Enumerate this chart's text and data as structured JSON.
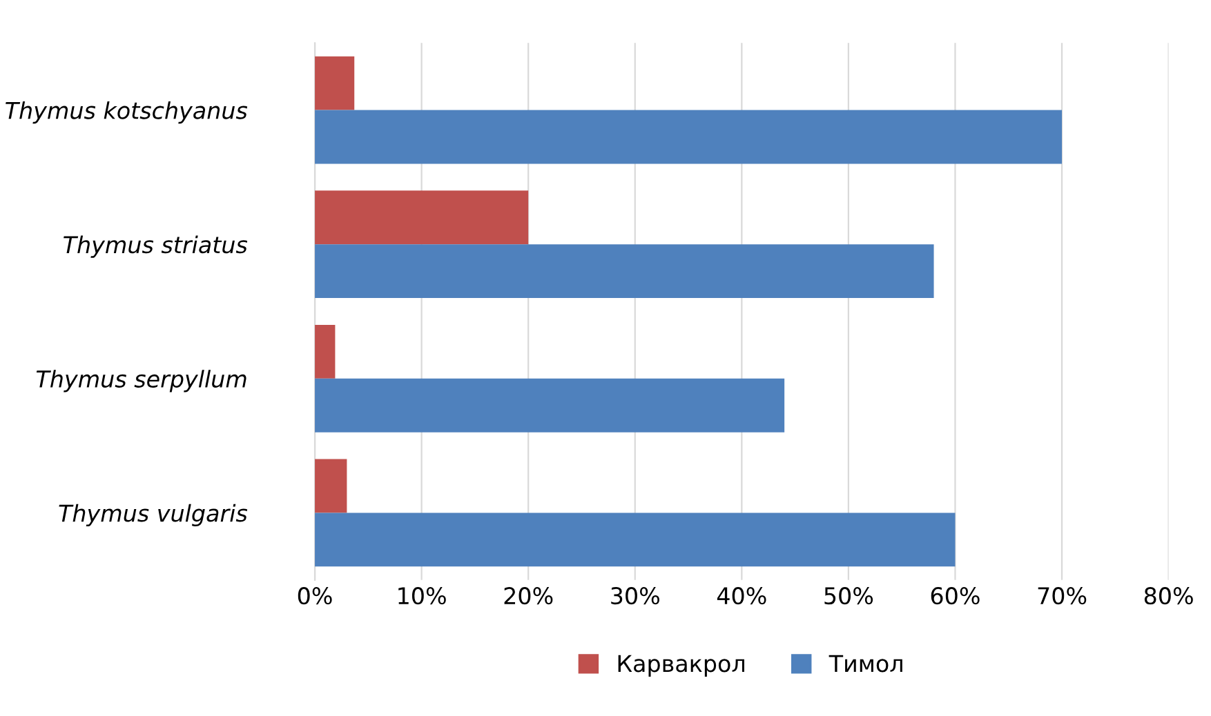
{
  "chart_data": {
    "type": "bar",
    "orientation": "horizontal",
    "categories": [
      "Thymus kotschyanus",
      "Thymus striatus",
      "Thymus serpyllum",
      "Thymus vulgaris"
    ],
    "series": [
      {
        "name": "Карвакрол",
        "color": "#c0504d",
        "values": [
          3.7,
          20,
          1.9,
          3
        ]
      },
      {
        "name": "Тимол",
        "color": "#4f81bd",
        "values": [
          70,
          58,
          44,
          60
        ]
      }
    ],
    "xlim": [
      0,
      80
    ],
    "xticks": [
      {
        "value": 0,
        "label": "0%"
      },
      {
        "value": 10,
        "label": "10%"
      },
      {
        "value": 20,
        "label": "20%"
      },
      {
        "value": 30,
        "label": "30%"
      },
      {
        "value": 40,
        "label": "40%"
      },
      {
        "value": 50,
        "label": "50%"
      },
      {
        "value": 60,
        "label": "60%"
      },
      {
        "value": 70,
        "label": "70%"
      },
      {
        "value": 80,
        "label": "80%"
      }
    ],
    "grid": "x",
    "legend": "bottom"
  }
}
